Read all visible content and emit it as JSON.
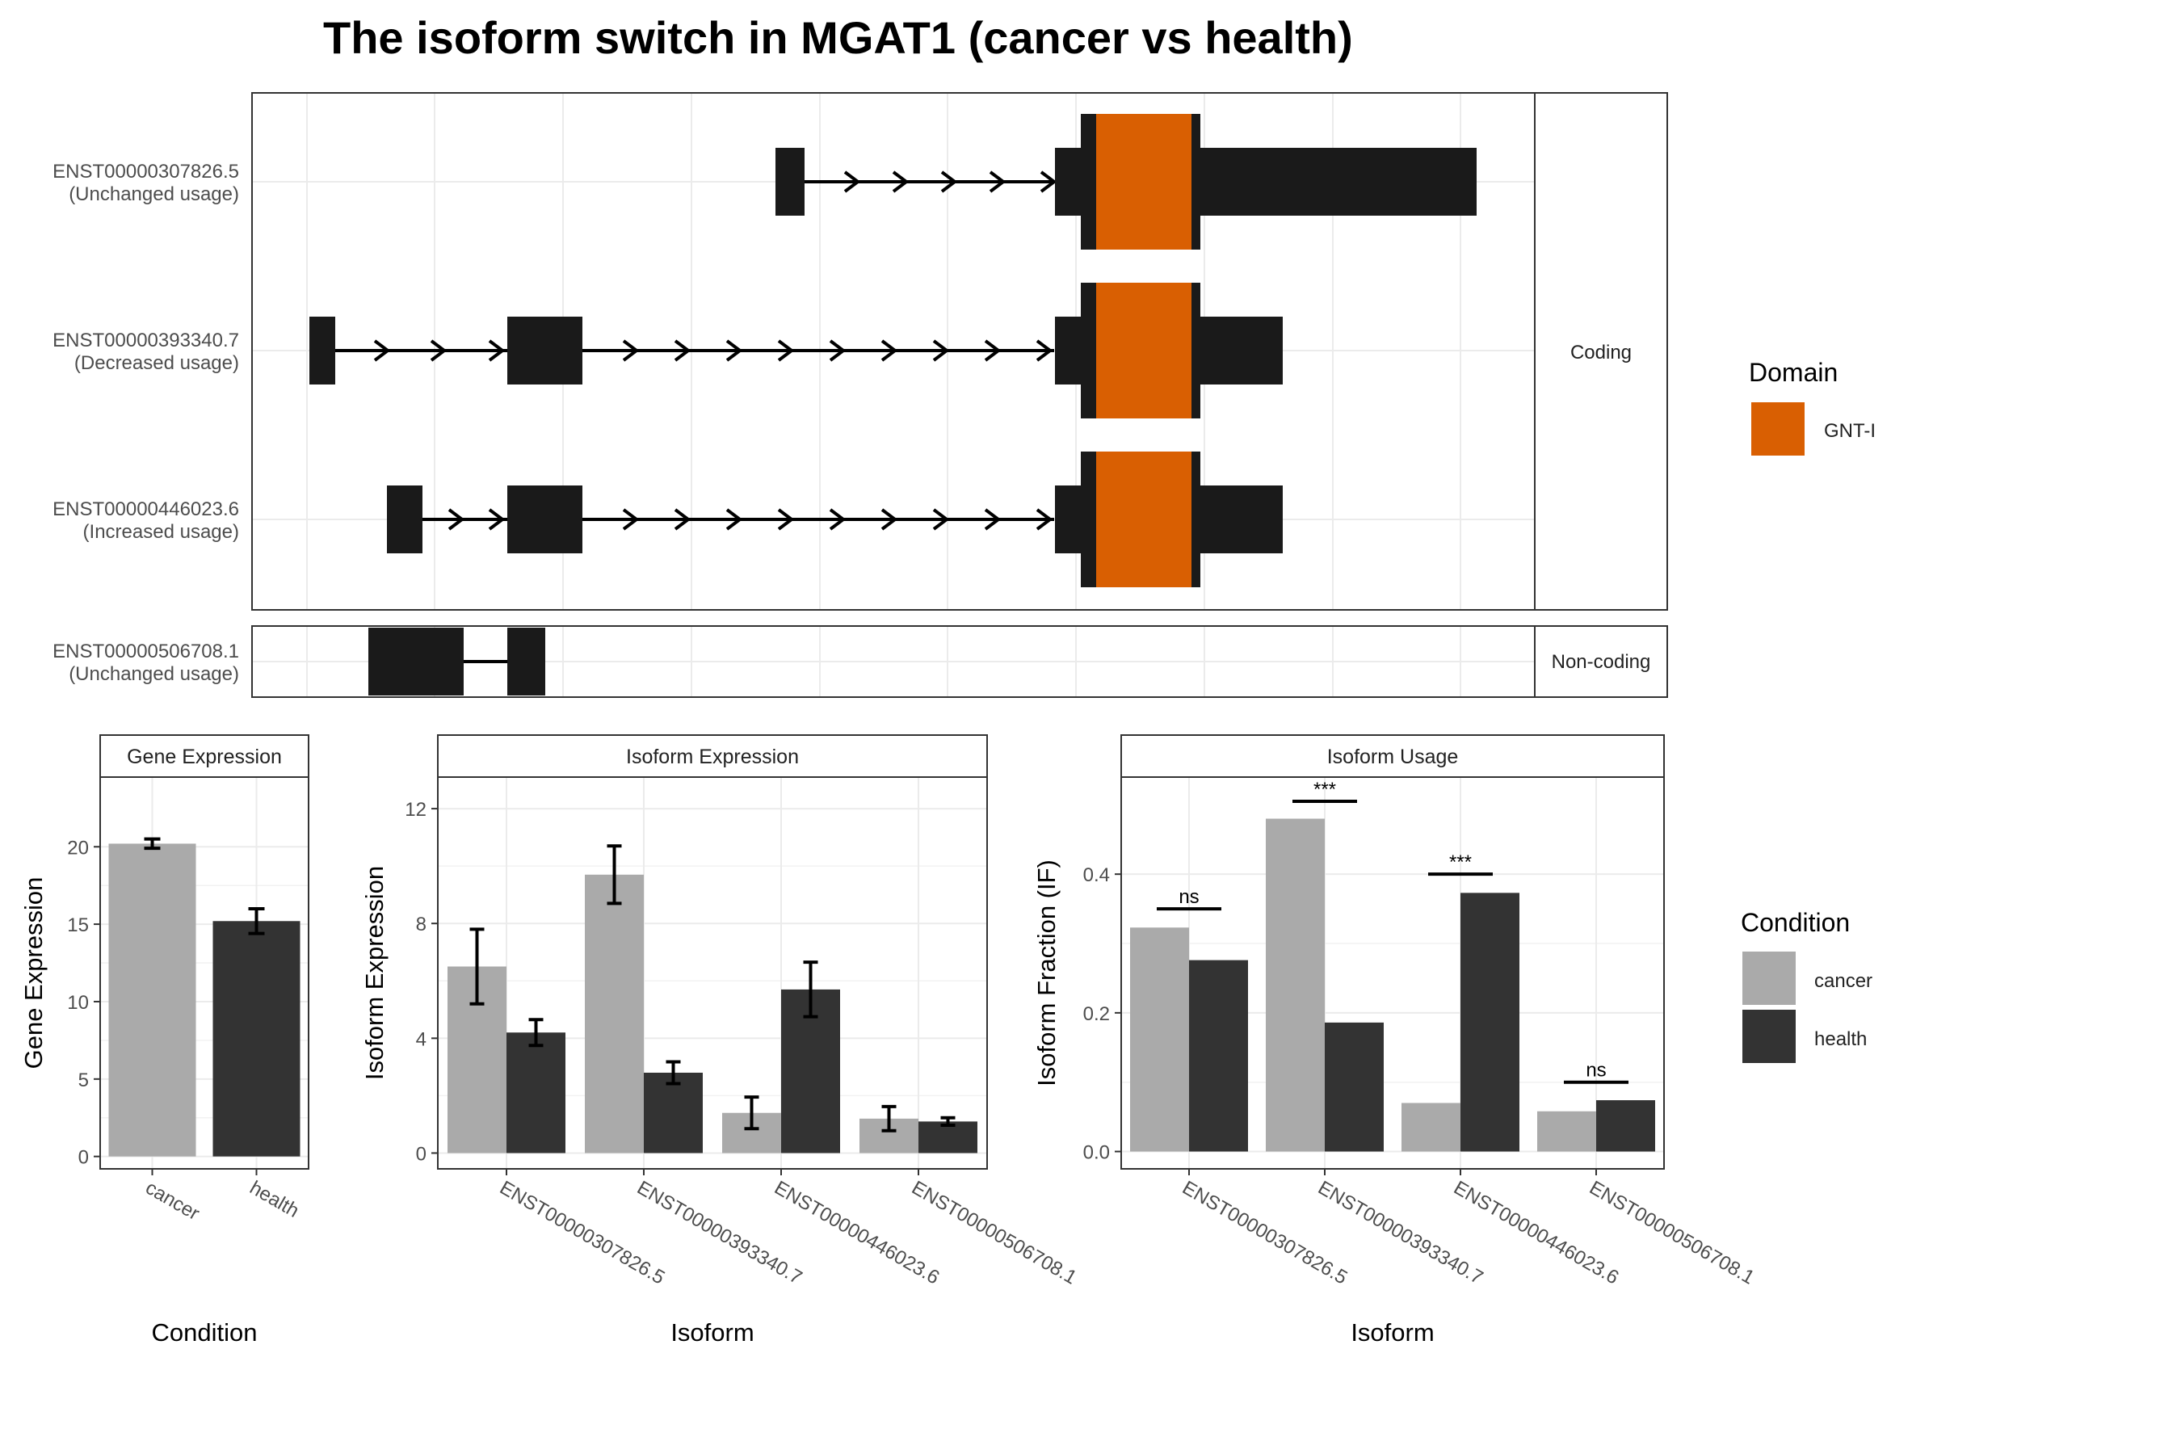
{
  "title": "The isoform switch in MGAT1 (cancer vs health)",
  "colors": {
    "cancer": "#aaaaaa",
    "health": "#333333",
    "domain_gnti": "#d95f02",
    "exon": "#1a1a1a",
    "grid": "#ebebeb"
  },
  "structure": {
    "isoforms": [
      {
        "id": "ENST00000307826.5",
        "usage": "(Unchanged usage)",
        "type": "Coding"
      },
      {
        "id": "ENST00000393340.7",
        "usage": "(Decreased usage)",
        "type": "Coding"
      },
      {
        "id": "ENST00000446023.6",
        "usage": "(Increased usage)",
        "type": "Coding"
      },
      {
        "id": "ENST00000506708.1",
        "usage": "(Unchanged usage)",
        "type": "Non-coding"
      }
    ],
    "strip_coding": "Coding",
    "strip_noncoding": "Non-coding",
    "legend_title": "Domain",
    "legend_item": "GNT-I"
  },
  "chart_data": [
    {
      "type": "bar",
      "strip": "Gene Expression",
      "xlabel": "Condition",
      "ylabel": "Gene Expression",
      "categories": [
        "cancer",
        "health"
      ],
      "values": [
        20.2,
        15.2
      ],
      "errors": [
        0.3,
        0.8
      ],
      "ylim": [
        -0.8,
        24.5
      ],
      "yticks": [
        0,
        5,
        10,
        15,
        20
      ]
    },
    {
      "type": "bar",
      "strip": "Isoform Expression",
      "xlabel": "Isoform",
      "ylabel": "Isoform Expression",
      "categories": [
        "ENST00000307826.5",
        "ENST00000393340.7",
        "ENST00000446023.6",
        "ENST00000506708.1"
      ],
      "series": [
        {
          "name": "cancer",
          "values": [
            6.5,
            9.7,
            1.4,
            1.2
          ],
          "errors": [
            1.3,
            1.0,
            0.55,
            0.42
          ]
        },
        {
          "name": "health",
          "values": [
            4.2,
            2.8,
            5.7,
            1.1
          ],
          "errors": [
            0.45,
            0.38,
            0.95,
            0.13
          ]
        }
      ],
      "ylim": [
        -0.55,
        13.1
      ],
      "yticks": [
        0,
        4,
        8,
        12
      ]
    },
    {
      "type": "bar",
      "strip": "Isoform Usage",
      "xlabel": "Isoform",
      "ylabel": "Isoform Fraction (IF)",
      "categories": [
        "ENST00000307826.5",
        "ENST00000393340.7",
        "ENST00000446023.6",
        "ENST00000506708.1"
      ],
      "series": [
        {
          "name": "cancer",
          "values": [
            0.323,
            0.48,
            0.07,
            0.058
          ]
        },
        {
          "name": "health",
          "values": [
            0.276,
            0.186,
            0.373,
            0.074
          ]
        }
      ],
      "significance": [
        {
          "label": "ns",
          "y": 0.35
        },
        {
          "label": "***",
          "y": 0.505
        },
        {
          "label": "***",
          "y": 0.4
        },
        {
          "label": "ns",
          "y": 0.1
        }
      ],
      "ylim": [
        -0.025,
        0.54
      ],
      "yticks": [
        0.0,
        0.2,
        0.4
      ],
      "ytick_labels": [
        "0.0",
        "0.2",
        "0.4"
      ]
    }
  ],
  "condition_legend": {
    "title": "Condition",
    "items": [
      "cancer",
      "health"
    ]
  }
}
